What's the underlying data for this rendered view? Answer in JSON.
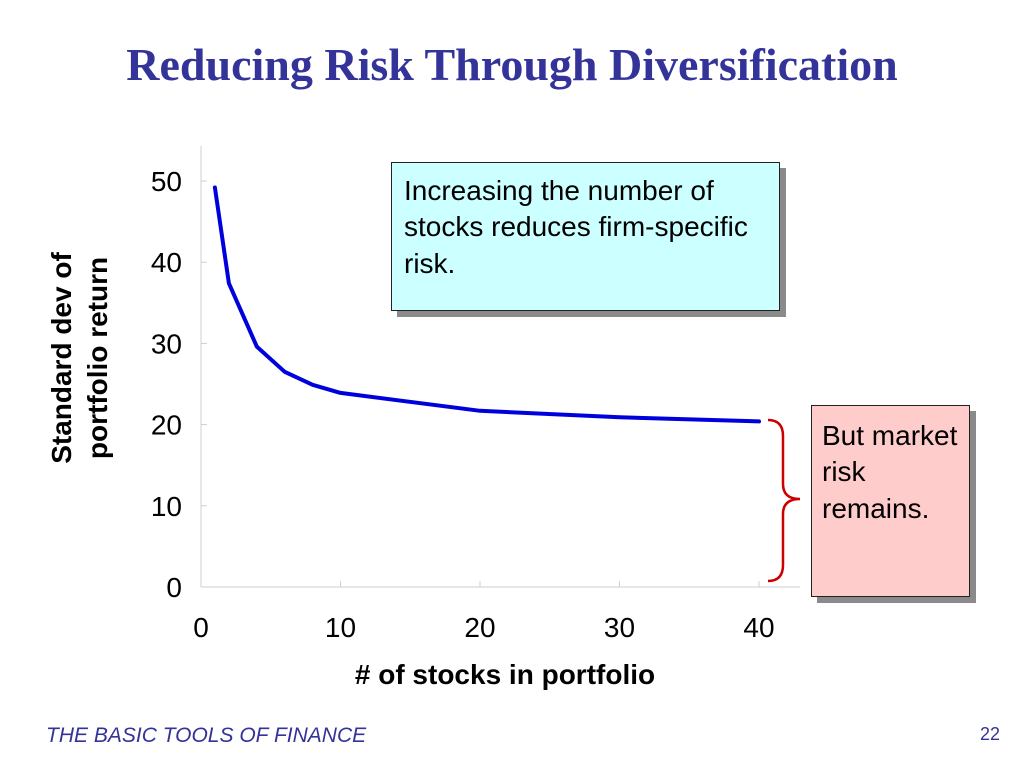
{
  "slide": {
    "title": "Reducing Risk Through Diversification",
    "footer": "THE BASIC TOOLS OF FINANCE",
    "page_number": "22"
  },
  "callouts": {
    "firm_specific": "Increasing the number of stocks reduces firm-specific risk.",
    "market": "But market risk remains."
  },
  "colors": {
    "title": "#333399",
    "line": "#0000dd",
    "brace": "#cc0000",
    "callout_firm_bg": "#ccffff",
    "callout_market_bg": "#ffcccc"
  },
  "chart_data": {
    "type": "line",
    "title": "",
    "xlabel": "# of stocks in portfolio",
    "ylabel_lines": [
      "Standard dev of",
      "portfolio return"
    ],
    "xlim": [
      0,
      40
    ],
    "ylim": [
      0,
      50
    ],
    "xticks": [
      0,
      10,
      20,
      30,
      40
    ],
    "yticks": [
      0,
      10,
      20,
      30,
      40,
      50
    ],
    "grid": false,
    "series": [
      {
        "x": [
          1,
          2,
          4,
          6,
          8,
          10,
          20,
          30,
          40
        ],
        "y": [
          49.2,
          37.4,
          29.6,
          26.5,
          24.9,
          23.9,
          21.7,
          20.9,
          20.4
        ]
      }
    ]
  }
}
